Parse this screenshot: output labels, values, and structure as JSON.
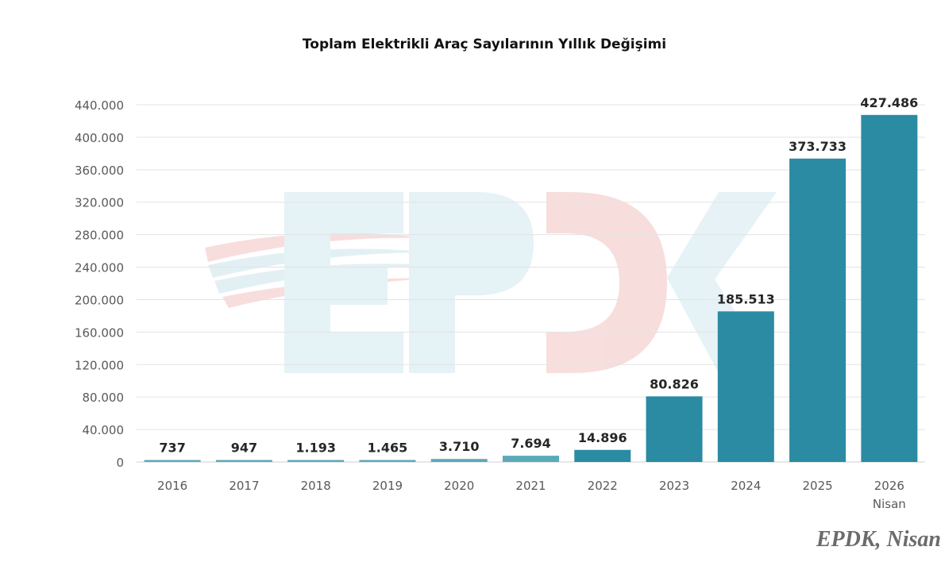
{
  "chart_data": {
    "type": "bar",
    "title": "Toplam Elektrikli Araç Sayılarının Yıllık Değişimi",
    "categories": [
      "2016",
      "2017",
      "2018",
      "2019",
      "2020",
      "2021",
      "2022",
      "2023",
      "2024",
      "2025",
      "2026"
    ],
    "category_sublabels": [
      "",
      "",
      "",
      "",
      "",
      "",
      "",
      "",
      "",
      "",
      "Nisan"
    ],
    "values": [
      737,
      947,
      1193,
      1465,
      3710,
      7694,
      14896,
      80826,
      185513,
      373733,
      427486
    ],
    "value_labels": [
      "737",
      "947",
      "1.193",
      "1.465",
      "3.710",
      "7.694",
      "14.896",
      "80.826",
      "185.513",
      "373.733",
      "427.486"
    ],
    "ylim": [
      0,
      440000
    ],
    "yticks": [
      0,
      40000,
      80000,
      120000,
      160000,
      200000,
      240000,
      280000,
      320000,
      360000,
      400000,
      440000
    ],
    "ytick_labels": [
      "0",
      "40.000",
      "80.000",
      "120.000",
      "160.000",
      "200.000",
      "240.000",
      "280.000",
      "320.000",
      "360.000",
      "400.000",
      "440.000"
    ],
    "grid": true,
    "legend": "none",
    "colors": {
      "bar_small": "#5aaabb",
      "bar_large": "#2a8ba3",
      "grid": "#e3e3e3",
      "tick_text": "#595959"
    }
  },
  "watermark": {
    "text": "EPDK"
  },
  "source_note": "EPDK, Nisan"
}
